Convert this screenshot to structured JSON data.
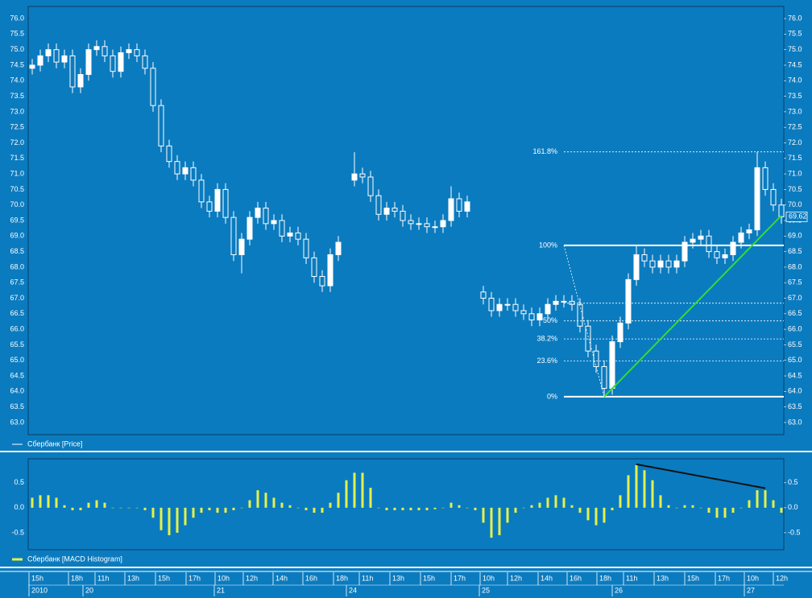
{
  "chart_data": [
    {
      "type": "candlestick",
      "legend": "Сбербанк [Price]",
      "color": "#ffffff",
      "ylim": [
        62.61,
        76.39
      ],
      "yticks": [
        {
          "value": 63,
          "label": "63.0"
        },
        {
          "value": 63.5,
          "label": "63.5"
        },
        {
          "value": 64,
          "label": "64.0"
        },
        {
          "value": 64.5,
          "label": "64.5"
        },
        {
          "value": 65,
          "label": "65.0"
        },
        {
          "value": 65.5,
          "label": "65.5"
        },
        {
          "value": 66,
          "label": "66.0"
        },
        {
          "value": 66.5,
          "label": "66.5"
        },
        {
          "value": 67,
          "label": "67.0"
        },
        {
          "value": 67.5,
          "label": "67.5"
        },
        {
          "value": 68,
          "label": "68.0"
        },
        {
          "value": 68.5,
          "label": "68.5"
        },
        {
          "value": 69,
          "label": "69.0"
        },
        {
          "value": 69.5,
          "label": "69.5"
        },
        {
          "value": 70,
          "label": "70.0"
        },
        {
          "value": 70.5,
          "label": "70.5"
        },
        {
          "value": 71,
          "label": "71.0"
        },
        {
          "value": 71.5,
          "label": "71.5"
        },
        {
          "value": 72,
          "label": "72.0"
        },
        {
          "value": 72.5,
          "label": "72.5"
        },
        {
          "value": 73,
          "label": "73.0"
        },
        {
          "value": 73.5,
          "label": "73.5"
        },
        {
          "value": 74,
          "label": "74.0"
        },
        {
          "value": 74.5,
          "label": "74.5"
        },
        {
          "value": 75,
          "label": "75.0"
        },
        {
          "value": 75.5,
          "label": "75.5"
        },
        {
          "value": 76,
          "label": "76.0"
        }
      ],
      "open": [
        74.4,
        74.5,
        74.8,
        75.0,
        74.6,
        74.8,
        73.8,
        74.2,
        75.0,
        75.1,
        74.8,
        74.3,
        74.9,
        75.0,
        74.8,
        74.4,
        73.2,
        71.9,
        71.4,
        71.0,
        71.2,
        70.8,
        70.1,
        69.8,
        70.5,
        69.6,
        68.4,
        68.9,
        69.6,
        69.9,
        69.4,
        69.5,
        69.0,
        69.1,
        68.9,
        68.3,
        67.7,
        67.4,
        68.4,
        null,
        70.8,
        71.0,
        70.9,
        70.3,
        69.7,
        69.9,
        69.8,
        69.5,
        69.4,
        69.4,
        69.3,
        69.3,
        69.5,
        70.2,
        69.8,
        null,
        67.2,
        67.0,
        66.6,
        66.8,
        66.8,
        66.6,
        66.5,
        66.3,
        66.5,
        66.8,
        66.9,
        66.9,
        66.8,
        66.1,
        65.3,
        64.8,
        64.1,
        65.6,
        66.2,
        67.6,
        68.4,
        68.2,
        68.0,
        68.2,
        68.0,
        68.2,
        68.8,
        68.9,
        69.0,
        68.5,
        68.3,
        68.4,
        68.8,
        69.1,
        69.2,
        71.2,
        70.5,
        70.0
      ],
      "high": [
        74.7,
        75.0,
        75.2,
        75.2,
        75.0,
        75.0,
        74.4,
        75.2,
        75.3,
        75.3,
        75.0,
        75.1,
        75.2,
        75.2,
        75.0,
        74.6,
        73.4,
        72.1,
        71.6,
        71.4,
        71.4,
        71.0,
        70.3,
        70.7,
        70.7,
        69.8,
        69.1,
        69.8,
        70.1,
        70.1,
        69.7,
        69.7,
        69.3,
        69.3,
        69.1,
        68.5,
        67.9,
        68.6,
        69.0,
        null,
        71.7,
        71.2,
        71.1,
        70.5,
        70.1,
        70.1,
        70.0,
        69.7,
        69.6,
        69.6,
        69.5,
        69.7,
        70.6,
        70.4,
        70.3,
        null,
        67.4,
        67.2,
        67.0,
        67.0,
        67.0,
        66.8,
        66.7,
        66.7,
        67.0,
        67.1,
        67.1,
        67.1,
        67.0,
        66.3,
        65.5,
        65.0,
        65.8,
        66.4,
        67.8,
        68.7,
        68.6,
        68.4,
        68.4,
        68.4,
        68.4,
        69.0,
        69.1,
        69.2,
        69.2,
        68.7,
        68.6,
        69.0,
        69.3,
        69.4,
        71.71,
        71.4,
        70.7,
        70.2
      ],
      "low": [
        74.2,
        74.3,
        74.6,
        74.4,
        74.4,
        73.6,
        73.6,
        74.0,
        74.8,
        74.6,
        74.1,
        74.1,
        74.7,
        74.6,
        74.2,
        73.0,
        71.7,
        71.2,
        70.8,
        70.8,
        70.6,
        69.9,
        69.6,
        69.6,
        69.4,
        68.2,
        67.8,
        68.7,
        69.4,
        69.2,
        69.2,
        68.8,
        68.8,
        68.7,
        68.1,
        67.5,
        67.2,
        67.2,
        68.2,
        null,
        70.6,
        70.7,
        70.1,
        69.5,
        69.5,
        69.6,
        69.3,
        69.2,
        69.2,
        69.1,
        69.1,
        69.1,
        69.3,
        69.6,
        69.6,
        null,
        66.8,
        66.4,
        66.4,
        66.6,
        66.4,
        66.3,
        66.1,
        66.1,
        66.3,
        66.6,
        66.7,
        66.6,
        65.9,
        65.1,
        64.6,
        63.83,
        63.9,
        65.4,
        66.0,
        67.4,
        68.0,
        67.8,
        67.8,
        67.8,
        67.8,
        68.0,
        68.6,
        68.7,
        68.3,
        68.1,
        68.1,
        68.2,
        68.6,
        68.9,
        69.0,
        70.3,
        69.8,
        69.4
      ],
      "close": [
        74.5,
        74.8,
        75.0,
        74.6,
        74.8,
        73.8,
        74.2,
        75.0,
        75.1,
        74.8,
        74.3,
        74.9,
        75.0,
        74.8,
        74.4,
        73.2,
        71.9,
        71.4,
        71.0,
        71.2,
        70.8,
        70.1,
        69.8,
        70.5,
        69.6,
        68.4,
        68.9,
        69.6,
        69.9,
        69.4,
        69.5,
        69.0,
        69.1,
        68.9,
        68.3,
        67.7,
        67.4,
        68.4,
        68.8,
        null,
        71.0,
        70.9,
        70.3,
        69.7,
        69.9,
        69.8,
        69.5,
        69.4,
        69.4,
        69.3,
        69.3,
        69.5,
        70.2,
        69.8,
        70.1,
        null,
        67.0,
        66.6,
        66.8,
        66.8,
        66.6,
        66.5,
        66.3,
        66.5,
        66.8,
        66.9,
        66.9,
        66.8,
        66.1,
        65.3,
        64.8,
        64.1,
        65.6,
        66.2,
        67.6,
        68.4,
        68.2,
        68.0,
        68.2,
        68.0,
        68.2,
        68.8,
        68.9,
        69.0,
        68.5,
        68.3,
        68.4,
        68.8,
        69.1,
        69.2,
        71.2,
        70.5,
        70.0,
        69.62
      ],
      "fib_levels": [
        71.71,
        68.7,
        66.84,
        66.27,
        65.69,
        64.98,
        63.83
      ],
      "fib_labels": [
        "161.8%",
        "100%",
        null,
        "50%",
        "38.2%",
        "23.6%",
        "0%"
      ],
      "fib_anchor_x": [
        66,
        71
      ],
      "trendline": {
        "color": "#33dd33",
        "x": [
          71,
          93
        ],
        "values": [
          63.83,
          69.66
        ]
      }
    },
    {
      "type": "bar",
      "legend": "Сбербанк [MACD Histogram]",
      "color": "#e6f04a",
      "ylim": [
        -0.84,
        0.98
      ],
      "yticks": [
        {
          "value": 0.5,
          "label": "0.5"
        },
        {
          "value": 0,
          "label": "0.0"
        },
        {
          "value": -0.5,
          "label": "-0.5"
        }
      ],
      "values": [
        0.2,
        0.25,
        0.25,
        0.2,
        0.05,
        -0.05,
        -0.05,
        0.1,
        0.15,
        0.1,
        0.0,
        0.0,
        0.0,
        0.0,
        -0.05,
        -0.2,
        -0.45,
        -0.55,
        -0.5,
        -0.35,
        -0.2,
        -0.1,
        -0.05,
        -0.1,
        -0.1,
        -0.05,
        0.0,
        0.15,
        0.35,
        0.3,
        0.2,
        0.1,
        0.05,
        0.0,
        -0.05,
        -0.1,
        -0.1,
        0.1,
        0.3,
        0.55,
        0.7,
        0.7,
        0.4,
        0.0,
        -0.05,
        -0.05,
        -0.05,
        -0.05,
        -0.05,
        -0.05,
        -0.03,
        0.0,
        0.1,
        0.05,
        0.0,
        -0.05,
        -0.3,
        -0.6,
        -0.55,
        -0.3,
        -0.1,
        0.0,
        0.05,
        0.1,
        0.2,
        0.25,
        0.2,
        0.05,
        -0.1,
        -0.25,
        -0.35,
        -0.3,
        -0.05,
        0.25,
        0.65,
        0.85,
        0.75,
        0.55,
        0.25,
        0.05,
        0.0,
        0.05,
        0.05,
        0.0,
        -0.1,
        -0.2,
        -0.2,
        -0.1,
        0.0,
        0.15,
        0.35,
        0.35,
        0.15,
        -0.1
      ],
      "trendline": {
        "color": "#111111",
        "x": [
          75,
          91
        ],
        "values": [
          0.87,
          0.39
        ]
      }
    }
  ],
  "time_axis": {
    "xticks": [
      {
        "value": -0.4,
        "label": "15h"
      },
      {
        "value": 4.5,
        "label": "18h"
      },
      {
        "value": 7.8,
        "label": "11h"
      },
      {
        "value": 11.5,
        "label": "13h"
      },
      {
        "value": 15.3,
        "label": "15h"
      },
      {
        "value": 19.1,
        "label": "17h"
      },
      {
        "value": 22.7,
        "label": "10h"
      },
      {
        "value": 26.2,
        "label": "12h"
      },
      {
        "value": 29.9,
        "label": "14h"
      },
      {
        "value": 33.6,
        "label": "16h"
      },
      {
        "value": 37.4,
        "label": "18h"
      },
      {
        "value": 40.6,
        "label": "11h"
      },
      {
        "value": 44.4,
        "label": "13h"
      },
      {
        "value": 48.2,
        "label": "15h"
      },
      {
        "value": 52.0,
        "label": "17h"
      },
      {
        "value": 55.6,
        "label": "10h"
      },
      {
        "value": 59.0,
        "label": "12h"
      },
      {
        "value": 62.8,
        "label": "14h"
      },
      {
        "value": 66.4,
        "label": "16h"
      },
      {
        "value": 70.1,
        "label": "18h"
      },
      {
        "value": 73.4,
        "label": "11h"
      },
      {
        "value": 77.2,
        "label": "13h"
      },
      {
        "value": 81.0,
        "label": "15h"
      },
      {
        "value": 84.8,
        "label": "17h"
      },
      {
        "value": 88.4,
        "label": "10h"
      },
      {
        "value": 92.0,
        "label": "12h"
      }
    ],
    "date_ticks": [
      {
        "value": -0.4,
        "label": "2010"
      },
      {
        "value": 6.3,
        "label": "20"
      },
      {
        "value": 22.6,
        "label": "21"
      },
      {
        "value": 39.0,
        "label": "24"
      },
      {
        "value": 55.5,
        "label": "25"
      },
      {
        "value": 72.0,
        "label": "26"
      },
      {
        "value": 88.4,
        "label": "27"
      }
    ]
  }
}
